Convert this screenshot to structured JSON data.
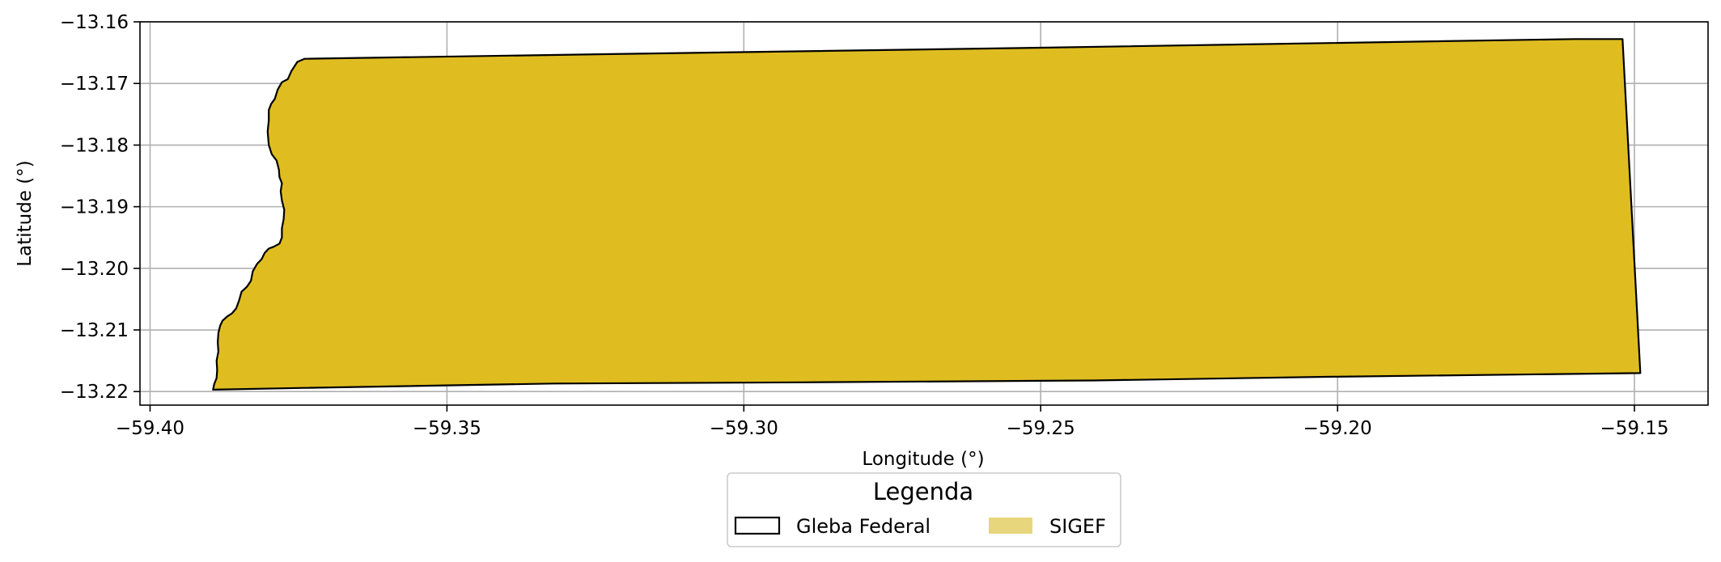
{
  "chart_data": {
    "type": "map",
    "xlabel": "Longitude (°)",
    "ylabel": "Latitude (°)",
    "xlim": [
      -59.4017,
      -59.1376
    ],
    "ylim": [
      -13.2222,
      -13.16
    ],
    "xticks": [
      -59.4,
      -59.35,
      -59.3,
      -59.25,
      -59.2,
      -59.15
    ],
    "xtick_labels": [
      "−59.40",
      "−59.35",
      "−59.30",
      "−59.25",
      "−59.20",
      "−59.15"
    ],
    "yticks": [
      -13.16,
      -13.17,
      -13.18,
      -13.19,
      -13.2,
      -13.21,
      -13.22
    ],
    "ytick_labels": [
      "−13.16",
      "−13.17",
      "−13.18",
      "−13.19",
      "−13.20",
      "−13.21",
      "−13.22"
    ],
    "grid": true,
    "legend": {
      "title": "Legenda",
      "placement": "below",
      "entries": [
        {
          "label": "Gleba Federal",
          "style": "outline",
          "edge": "#000000"
        },
        {
          "label": "SIGEF",
          "style": "fill",
          "fill": "#e8d67c"
        }
      ]
    },
    "polygon": {
      "fill": "#dfbd21",
      "edge": "#000000",
      "coords": [
        [
          -59.3894,
          -13.2197
        ],
        [
          -59.374,
          -13.2194
        ],
        [
          -59.332,
          -13.2187
        ],
        [
          -59.29,
          -13.2185
        ],
        [
          -59.241,
          -13.2182
        ],
        [
          -59.201,
          -13.2176
        ],
        [
          -59.149,
          -13.217
        ],
        [
          -59.152,
          -13.1628
        ],
        [
          -59.16,
          -13.1628
        ],
        [
          -59.25,
          -13.1642
        ],
        [
          -59.32,
          -13.1652
        ],
        [
          -59.374,
          -13.166
        ],
        [
          -59.3752,
          -13.1665
        ],
        [
          -59.3762,
          -13.168
        ],
        [
          -59.3768,
          -13.1693
        ],
        [
          -59.3778,
          -13.1698
        ],
        [
          -59.3785,
          -13.171
        ],
        [
          -59.379,
          -13.1725
        ],
        [
          -59.3796,
          -13.1733
        ],
        [
          -59.38,
          -13.1743
        ],
        [
          -59.38,
          -13.176
        ],
        [
          -59.3802,
          -13.1778
        ],
        [
          -59.38,
          -13.18
        ],
        [
          -59.3795,
          -13.1815
        ],
        [
          -59.3787,
          -13.1825
        ],
        [
          -59.3783,
          -13.184
        ],
        [
          -59.3782,
          -13.1852
        ],
        [
          -59.3778,
          -13.1862
        ],
        [
          -59.378,
          -13.1875
        ],
        [
          -59.3778,
          -13.189
        ],
        [
          -59.3774,
          -13.1905
        ],
        [
          -59.3775,
          -13.192
        ],
        [
          -59.3778,
          -13.1935
        ],
        [
          -59.3778,
          -13.195
        ],
        [
          -59.3782,
          -13.196
        ],
        [
          -59.3792,
          -13.1965
        ],
        [
          -59.38,
          -13.1968
        ],
        [
          -59.3807,
          -13.1975
        ],
        [
          -59.3812,
          -13.1985
        ],
        [
          -59.382,
          -13.1993
        ],
        [
          -59.3827,
          -13.2005
        ],
        [
          -59.383,
          -13.202
        ],
        [
          -59.3837,
          -13.203
        ],
        [
          -59.3846,
          -13.2038
        ],
        [
          -59.385,
          -13.2052
        ],
        [
          -59.3855,
          -13.2065
        ],
        [
          -59.3862,
          -13.2073
        ],
        [
          -59.387,
          -13.2078
        ],
        [
          -59.3878,
          -13.2085
        ],
        [
          -59.3882,
          -13.2093
        ],
        [
          -59.3885,
          -13.2105
        ],
        [
          -59.3886,
          -13.212
        ],
        [
          -59.3885,
          -13.2135
        ],
        [
          -59.3888,
          -13.215
        ],
        [
          -59.3887,
          -13.2165
        ],
        [
          -59.3888,
          -13.2178
        ],
        [
          -59.3892,
          -13.2188
        ]
      ]
    }
  }
}
